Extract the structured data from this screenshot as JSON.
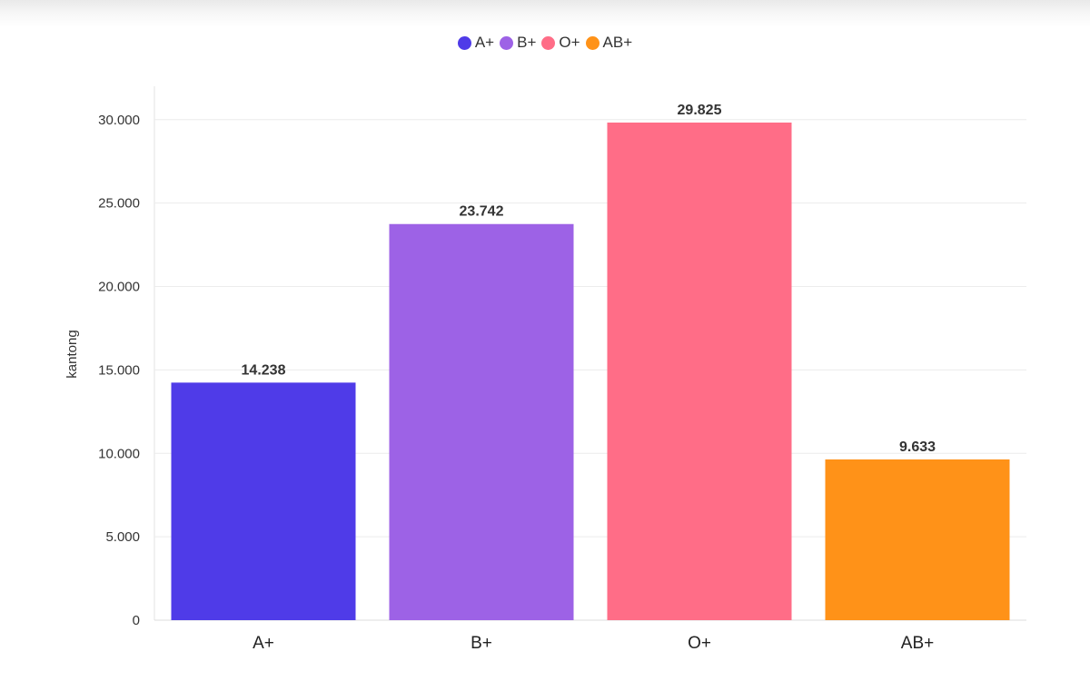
{
  "chart_data": {
    "type": "bar",
    "categories": [
      "A+",
      "B+",
      "O+",
      "AB+"
    ],
    "values": [
      14238,
      23742,
      29825,
      9633
    ],
    "value_labels": [
      "14.238",
      "23.742",
      "29.825",
      "9.633"
    ],
    "colors": [
      "#4f3be8",
      "#9d62e6",
      "#ff6d87",
      "#ff9218"
    ],
    "legend": [
      {
        "name": "A+",
        "color": "#4f3be8"
      },
      {
        "name": "B+",
        "color": "#9d62e6"
      },
      {
        "name": "O+",
        "color": "#ff6d87"
      },
      {
        "name": "AB+",
        "color": "#ff9218"
      }
    ],
    "legend_position": "top-center",
    "ylabel": "kantong",
    "xlabel": "",
    "ylim": [
      0,
      32000
    ],
    "yticks": [
      0,
      5000,
      10000,
      15000,
      20000,
      25000,
      30000
    ],
    "ytick_labels": [
      "0",
      "5.000",
      "10.000",
      "15.000",
      "20.000",
      "25.000",
      "30.000"
    ],
    "grid": true
  }
}
